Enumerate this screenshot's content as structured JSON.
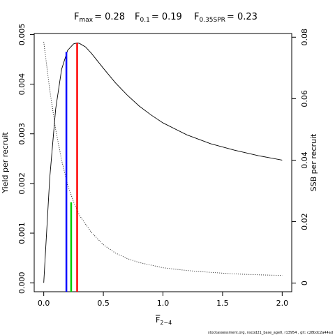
{
  "chart_data": {
    "type": "line",
    "title": {
      "fmax": {
        "symbol": "F",
        "sub": "max",
        "value": "= 0.28"
      },
      "f01": {
        "symbol": "F",
        "sub": "0.1",
        "value": "= 0.19"
      },
      "fspr": {
        "symbol": "F",
        "sub": "0.35SPR",
        "value": "= 0.23"
      }
    },
    "xlabel": {
      "symbol": "F",
      "sub": "2−4"
    },
    "ylabel_left": "Yield per recruit",
    "ylabel_right": "SSB per recruit",
    "xlim": [
      -0.08,
      2.08
    ],
    "ylim_left": [
      -0.00018,
      0.00502
    ],
    "ylim_right": [
      -0.0028,
      0.0812
    ],
    "x_ticks": [
      {
        "v": 0.0,
        "label": "0.0"
      },
      {
        "v": 0.5,
        "label": "0.5"
      },
      {
        "v": 1.0,
        "label": "1.0"
      },
      {
        "v": 1.5,
        "label": "1.5"
      },
      {
        "v": 2.0,
        "label": "2.0"
      }
    ],
    "y_left_ticks": [
      {
        "v": 0.0,
        "label": "0.000"
      },
      {
        "v": 0.001,
        "label": "0.001"
      },
      {
        "v": 0.002,
        "label": "0.002"
      },
      {
        "v": 0.003,
        "label": "0.003"
      },
      {
        "v": 0.004,
        "label": "0.004"
      },
      {
        "v": 0.005,
        "label": "0.005"
      }
    ],
    "y_right_ticks": [
      {
        "v": 0.0,
        "label": "0"
      },
      {
        "v": 0.02,
        "label": "0.02"
      },
      {
        "v": 0.04,
        "label": "0.04"
      },
      {
        "v": 0.06,
        "label": "0.06"
      },
      {
        "v": 0.08,
        "label": "0.08"
      }
    ],
    "series": [
      {
        "axis": "left",
        "style": "solid",
        "color": "#000000",
        "x": [
          0.0,
          0.05,
          0.1,
          0.15,
          0.2,
          0.25,
          0.28,
          0.3,
          0.35,
          0.4,
          0.5,
          0.6,
          0.7,
          0.8,
          0.9,
          1.0,
          1.2,
          1.4,
          1.6,
          1.8,
          2.0
        ],
        "y": [
          0.0,
          0.0021,
          0.0035,
          0.0043,
          0.00468,
          0.00481,
          0.00483,
          0.00482,
          0.00475,
          0.00462,
          0.00432,
          0.00403,
          0.00378,
          0.00356,
          0.00338,
          0.00322,
          0.00298,
          0.0028,
          0.00267,
          0.00256,
          0.00247
        ]
      },
      {
        "axis": "right",
        "style": "dotted",
        "color": "#000000",
        "x": [
          0.0,
          0.05,
          0.1,
          0.15,
          0.2,
          0.25,
          0.3,
          0.4,
          0.5,
          0.6,
          0.7,
          0.8,
          1.0,
          1.2,
          1.4,
          1.6,
          1.8,
          2.0
        ],
        "y": [
          0.0785,
          0.063,
          0.05,
          0.04,
          0.032,
          0.0265,
          0.022,
          0.0165,
          0.0125,
          0.0098,
          0.008,
          0.0067,
          0.005,
          0.0041,
          0.0035,
          0.003,
          0.0027,
          0.0025
        ]
      }
    ],
    "reference_lines": [
      {
        "name": "F0.1",
        "x": 0.19,
        "y_top": 0.00465,
        "color": "#0000ff"
      },
      {
        "name": "Fmax",
        "x": 0.28,
        "y_top": 0.00483,
        "color": "#ff0000"
      },
      {
        "name": "F0.35SPR",
        "x": 0.23,
        "y_top": 0.00162,
        "color": "#00cc00"
      }
    ]
  },
  "footer": "stockassessment.org, nscod21_base_age0, r13954 , git: c28bdc2a44ad"
}
